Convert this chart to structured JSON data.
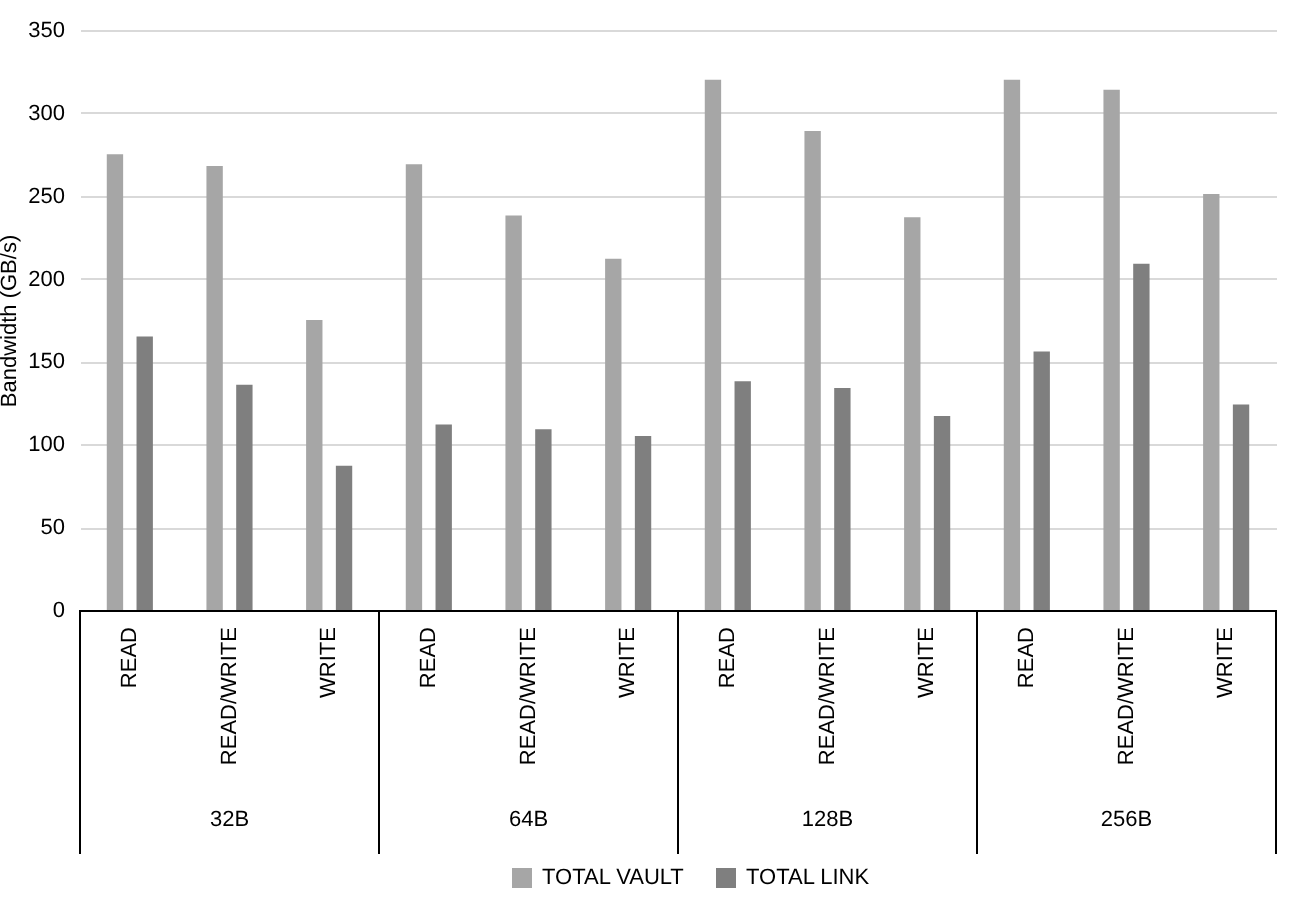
{
  "chart_data": {
    "type": "bar",
    "ylabel": "Bandwidth (GB/s)",
    "categories": [
      "READ",
      "READ/WRITE",
      "WRITE",
      "READ",
      "READ/WRITE",
      "WRITE",
      "READ",
      "READ/WRITE",
      "WRITE",
      "READ",
      "READ/WRITE",
      "WRITE"
    ],
    "annotations": [
      "32B",
      "64B",
      "128B",
      "256B"
    ],
    "series": [
      {
        "name": "TOTAL VAULT",
        "color": "#a6a6a6",
        "values": [
          275,
          268,
          175,
          269,
          238,
          212,
          320,
          289,
          237,
          320,
          314,
          251
        ]
      },
      {
        "name": "TOTAL LINK",
        "color": "#7f7f7f",
        "values": [
          165,
          136,
          87,
          112,
          109,
          105,
          138,
          134,
          117,
          156,
          209,
          124
        ]
      }
    ],
    "ylim": [
      0,
      350
    ],
    "yticks": [
      0,
      50,
      100,
      150,
      200,
      250,
      300,
      350
    ],
    "grid": "y",
    "legend": "bottom"
  }
}
